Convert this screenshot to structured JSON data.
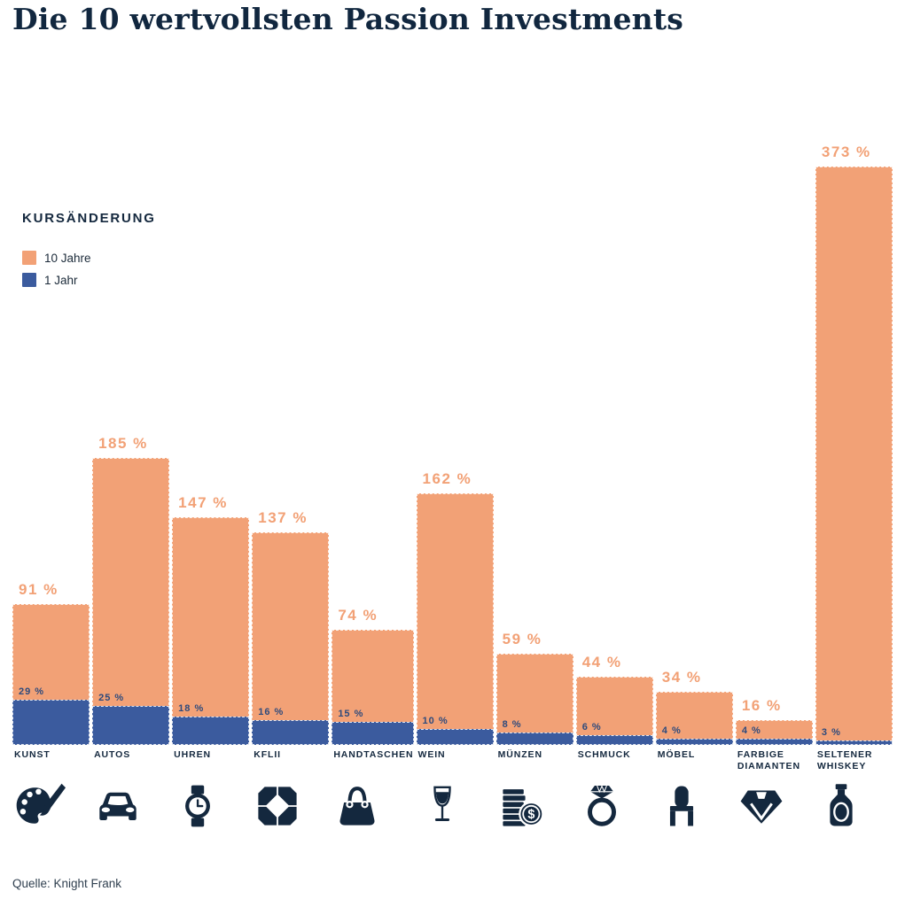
{
  "title": "Die 10 wertvollsten Passion Investments",
  "source": "Quelle: Knight Frank",
  "legend": {
    "heading": "KURSÄNDERUNG",
    "items": [
      {
        "label": "10 Jahre",
        "color": "#F2A176"
      },
      {
        "label": "1 Jahr",
        "color": "#3B5B9E"
      }
    ]
  },
  "chart_data": {
    "type": "bar",
    "subtype": "overlay",
    "title": "Die 10 wertvollsten Passion Investments",
    "categories": [
      "KUNST",
      "AUTOS",
      "UHREN",
      "KFLII",
      "HANDTASCHEN",
      "WEIN",
      "MÜNZEN",
      "SCHMUCK",
      "MÖBEL",
      "FARBIGE DIAMANTEN",
      "SELTENER WHISKEY"
    ],
    "slugs": [
      "kunst",
      "autos",
      "uhren",
      "kflii",
      "handtaschen",
      "wein",
      "muenzen",
      "schmuck",
      "moebel",
      "farbige-diamanten",
      "seltener-whiskey"
    ],
    "icons": [
      "palette",
      "car",
      "watch",
      "kflii-pattern",
      "handbag",
      "wine-glass",
      "coins",
      "ring",
      "chair",
      "diamond",
      "whiskey-bottle"
    ],
    "series": [
      {
        "name": "10 Jahre",
        "color": "#F2A176",
        "label_color": "#F2A176",
        "values": [
          91,
          185,
          147,
          137,
          74,
          162,
          59,
          44,
          34,
          16,
          373
        ]
      },
      {
        "name": "1 Jahr",
        "color": "#3B5B9E",
        "label_color": "#2E4A7C",
        "values": [
          29,
          25,
          18,
          16,
          15,
          10,
          8,
          6,
          4,
          4,
          3
        ]
      }
    ],
    "value_suffix": " %",
    "ylim": [
      0,
      373
    ],
    "grid": false,
    "legend_position": "upper-left",
    "accent_navy": "#14283E"
  }
}
